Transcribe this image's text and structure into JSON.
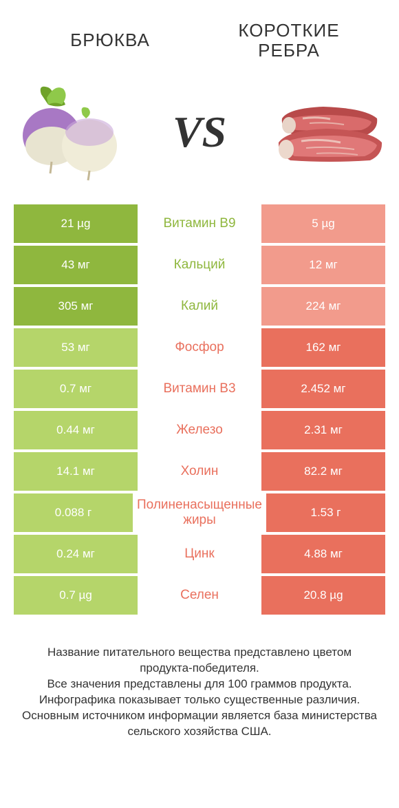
{
  "title_left": "БРЮКВА",
  "title_right_line1": "КОРОТКИЕ",
  "title_right_line2": "РЕБРА",
  "vs": "VS",
  "colors": {
    "left_winner": "#8fb73e",
    "left_loser": "#b5d56a",
    "right_winner": "#e9705d",
    "right_loser": "#f29b8c",
    "left_label": "#8fb73e",
    "right_label": "#e9705d"
  },
  "rows": [
    {
      "name": "Витамин B9",
      "left": "21 µg",
      "right": "5 µg",
      "winner": "left"
    },
    {
      "name": "Кальций",
      "left": "43 мг",
      "right": "12 мг",
      "winner": "left"
    },
    {
      "name": "Калий",
      "left": "305 мг",
      "right": "224 мг",
      "winner": "left"
    },
    {
      "name": "Фосфор",
      "left": "53 мг",
      "right": "162 мг",
      "winner": "right"
    },
    {
      "name": "Витамин B3",
      "left": "0.7 мг",
      "right": "2.452 мг",
      "winner": "right"
    },
    {
      "name": "Железо",
      "left": "0.44 мг",
      "right": "2.31 мг",
      "winner": "right"
    },
    {
      "name": "Холин",
      "left": "14.1 мг",
      "right": "82.2 мг",
      "winner": "right"
    },
    {
      "name": "Полиненасыщенные жиры",
      "left": "0.088 г",
      "right": "1.53 г",
      "winner": "right"
    },
    {
      "name": "Цинк",
      "left": "0.24 мг",
      "right": "4.88 мг",
      "winner": "right"
    },
    {
      "name": "Селен",
      "left": "0.7 µg",
      "right": "20.8 µg",
      "winner": "right"
    }
  ],
  "footer": {
    "line1": "Название питательного вещества представлено цветом продукта-победителя.",
    "line2": "Все значения представлены для 100 граммов продукта.",
    "line3": "Инфографика показывает только существенные различия.",
    "line4": "Основным источником информации является база министерства сельского хозяйства США."
  }
}
